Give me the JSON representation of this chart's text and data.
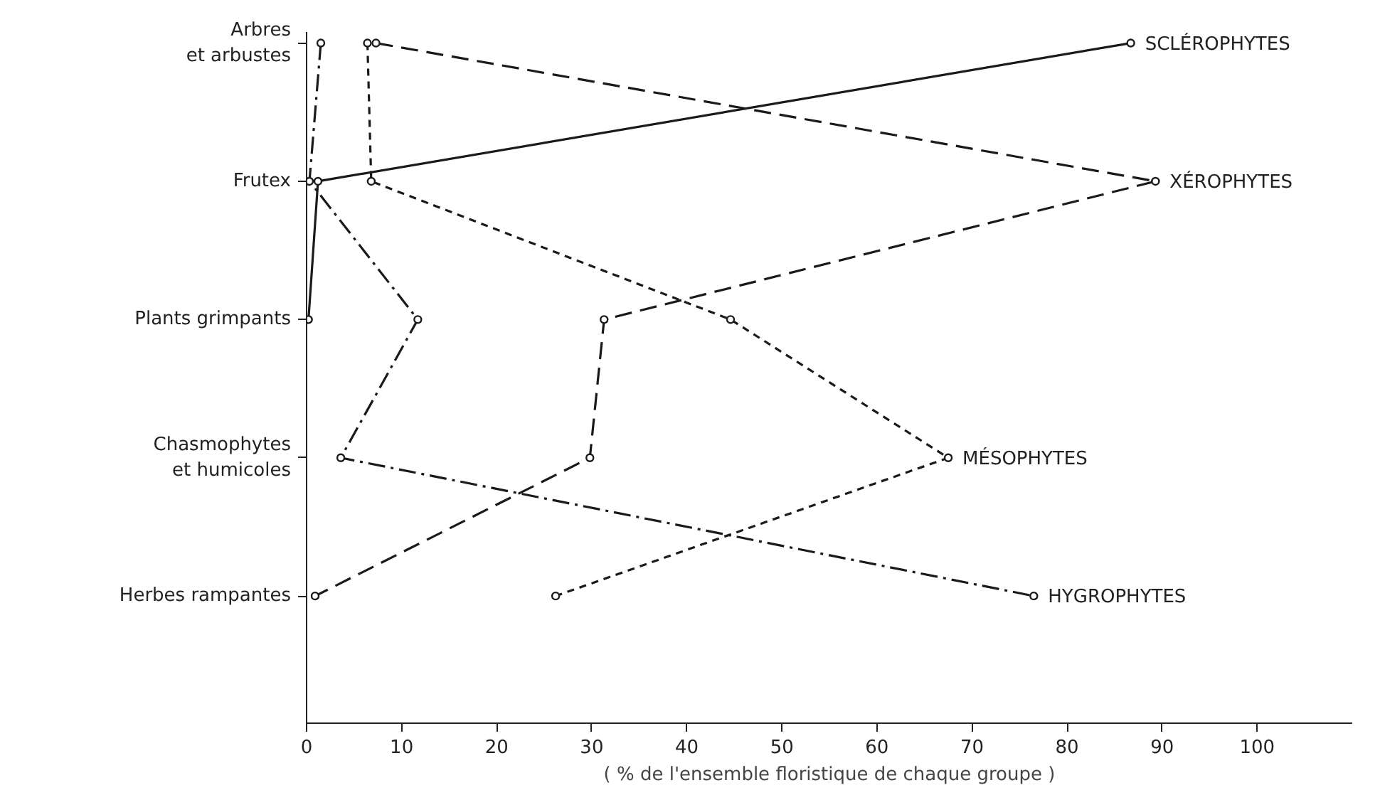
{
  "chart_data": {
    "type": "line",
    "orientation": "horizontal",
    "xlabel": "( % de l'ensemble floristique de chaque groupe )",
    "categories": [
      "Arbres\net arbustes",
      "Frutex",
      "Plants grimpants",
      "Chasmophytes\net humicoles",
      "Herbes rampantes"
    ],
    "xlim": [
      0,
      110
    ],
    "xticks": [
      0,
      10,
      20,
      30,
      40,
      50,
      60,
      70,
      80,
      90,
      100
    ],
    "marker": "circle",
    "grid": false,
    "series": [
      {
        "name": "SCLÉROPHYTES",
        "color": "#1a1a1a",
        "line_style": "solid",
        "values": [
          86.7,
          1.2,
          0.2,
          null,
          null
        ]
      },
      {
        "name": "XÉROPHYTES",
        "color": "#1a1a1a",
        "line_style": "dashed",
        "values": [
          7.3,
          89.3,
          31.3,
          29.8,
          0.9
        ]
      },
      {
        "name": "MÉSOPHYTES",
        "color": "#1a1a1a",
        "line_style": "dotted",
        "values": [
          6.4,
          6.8,
          44.6,
          67.5,
          26.2
        ]
      },
      {
        "name": "HYGROPHYTES",
        "color": "#1a1a1a",
        "line_style": "dashdot",
        "values": [
          1.5,
          0.3,
          11.7,
          3.6,
          76.5
        ]
      }
    ]
  }
}
